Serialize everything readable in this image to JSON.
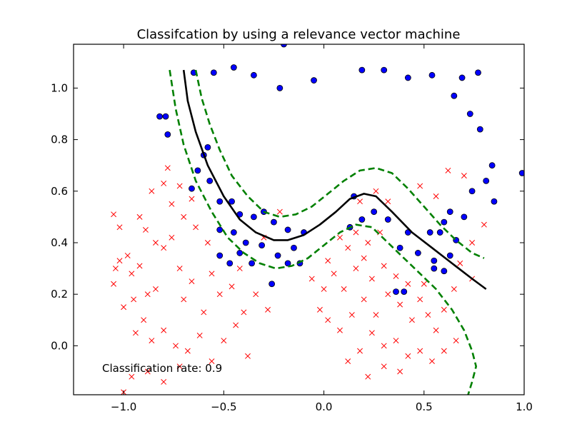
{
  "chart_data": {
    "type": "scatter",
    "title": "Classifcation by using a relevance vector machine",
    "xlabel": "",
    "ylabel": "",
    "xlim": [
      -1.25,
      1.0
    ],
    "ylim": [
      -0.19,
      1.17
    ],
    "x_ticks": [
      -1.0,
      -0.5,
      0.0,
      0.5,
      1.0
    ],
    "x_tick_labels": [
      "−1.0",
      "−0.5",
      "0.0",
      "0.5",
      "1.0"
    ],
    "y_ticks": [
      0.0,
      0.2,
      0.4,
      0.6,
      0.8,
      1.0
    ],
    "y_tick_labels": [
      "0.0",
      "0.2",
      "0.4",
      "0.6",
      "0.8",
      "1.0"
    ],
    "grid": false,
    "annotation": "Classification rate: 0.9",
    "colors": {
      "class_circle": "#0000ff",
      "class_cross": "#ff0000",
      "decision_boundary": "#000000",
      "margin_lines": "#008000"
    },
    "series": [
      {
        "marker": "circle",
        "color": "#0000ff",
        "points": [
          [
            -0.82,
            0.89
          ],
          [
            -0.79,
            0.89
          ],
          [
            -0.78,
            0.82
          ],
          [
            -0.65,
            1.06
          ],
          [
            -0.55,
            1.06
          ],
          [
            -0.45,
            1.08
          ],
          [
            -0.35,
            1.05
          ],
          [
            -0.22,
            1.0
          ],
          [
            -0.2,
            1.17
          ],
          [
            -0.05,
            1.03
          ],
          [
            0.19,
            1.07
          ],
          [
            0.3,
            1.07
          ],
          [
            0.42,
            1.04
          ],
          [
            0.54,
            1.05
          ],
          [
            0.69,
            1.04
          ],
          [
            0.77,
            1.06
          ],
          [
            0.65,
            0.97
          ],
          [
            0.73,
            0.9
          ],
          [
            0.78,
            0.84
          ],
          [
            0.84,
            0.7
          ],
          [
            0.99,
            0.67
          ],
          [
            0.81,
            0.64
          ],
          [
            0.85,
            0.56
          ],
          [
            0.74,
            0.6
          ],
          [
            -0.6,
            0.74
          ],
          [
            -0.58,
            0.77
          ],
          [
            -0.63,
            0.68
          ],
          [
            -0.66,
            0.61
          ],
          [
            -0.57,
            0.64
          ],
          [
            -0.52,
            0.56
          ],
          [
            -0.46,
            0.56
          ],
          [
            -0.42,
            0.51
          ],
          [
            -0.35,
            0.5
          ],
          [
            -0.3,
            0.52
          ],
          [
            -0.25,
            0.48
          ],
          [
            -0.18,
            0.45
          ],
          [
            -0.1,
            0.44
          ],
          [
            -0.52,
            0.45
          ],
          [
            -0.45,
            0.44
          ],
          [
            -0.39,
            0.4
          ],
          [
            -0.31,
            0.39
          ],
          [
            -0.23,
            0.35
          ],
          [
            -0.15,
            0.38
          ],
          [
            -0.52,
            0.35
          ],
          [
            -0.42,
            0.36
          ],
          [
            -0.47,
            0.32
          ],
          [
            -0.36,
            0.32
          ],
          [
            -0.26,
            0.24
          ],
          [
            -0.18,
            0.32
          ],
          [
            -0.12,
            0.32
          ],
          [
            0.13,
            0.46
          ],
          [
            0.19,
            0.49
          ],
          [
            0.15,
            0.58
          ],
          [
            0.25,
            0.52
          ],
          [
            0.32,
            0.49
          ],
          [
            0.42,
            0.44
          ],
          [
            0.53,
            0.44
          ],
          [
            0.58,
            0.44
          ],
          [
            0.66,
            0.41
          ],
          [
            0.38,
            0.38
          ],
          [
            0.47,
            0.36
          ],
          [
            0.55,
            0.33
          ],
          [
            0.63,
            0.35
          ],
          [
            0.6,
            0.29
          ],
          [
            0.55,
            0.3
          ],
          [
            0.4,
            0.21
          ],
          [
            0.36,
            0.21
          ],
          [
            0.7,
            0.5
          ],
          [
            0.63,
            0.52
          ],
          [
            0.6,
            0.48
          ]
        ]
      },
      {
        "marker": "x",
        "color": "#ff0000",
        "points": [
          [
            -1.05,
            0.51
          ],
          [
            -1.02,
            0.46
          ],
          [
            -0.98,
            0.35
          ],
          [
            -1.02,
            0.33
          ],
          [
            -0.96,
            0.28
          ],
          [
            -0.92,
            0.31
          ],
          [
            -0.88,
            0.2
          ],
          [
            -1.0,
            0.15
          ],
          [
            -0.95,
            0.18
          ],
          [
            -0.9,
            0.1
          ],
          [
            -0.84,
            0.22
          ],
          [
            -0.8,
            0.38
          ],
          [
            -0.76,
            0.42
          ],
          [
            -0.72,
            0.3
          ],
          [
            -0.66,
            0.25
          ],
          [
            -0.7,
            0.18
          ],
          [
            -0.6,
            0.13
          ],
          [
            -0.56,
            0.28
          ],
          [
            -0.52,
            0.2
          ],
          [
            -0.46,
            0.23
          ],
          [
            -0.4,
            0.13
          ],
          [
            -0.86,
            0.6
          ],
          [
            -0.8,
            0.63
          ],
          [
            -0.76,
            0.55
          ],
          [
            -0.7,
            0.5
          ],
          [
            -0.64,
            0.46
          ],
          [
            -0.58,
            0.4
          ],
          [
            -0.92,
            0.5
          ],
          [
            -0.89,
            0.45
          ],
          [
            -0.84,
            0.4
          ],
          [
            -0.94,
            0.05
          ],
          [
            -0.86,
            0.02
          ],
          [
            -0.8,
            0.06
          ],
          [
            -0.74,
            0.0
          ],
          [
            -0.68,
            -0.02
          ],
          [
            -0.62,
            0.04
          ],
          [
            -0.56,
            -0.06
          ],
          [
            -0.5,
            0.02
          ],
          [
            -0.44,
            0.08
          ],
          [
            -0.38,
            -0.04
          ],
          [
            -0.96,
            -0.12
          ],
          [
            -0.88,
            -0.1
          ],
          [
            -0.8,
            -0.14
          ],
          [
            -0.72,
            -0.08
          ],
          [
            -1.0,
            -0.18
          ],
          [
            -0.78,
            0.69
          ],
          [
            -0.72,
            0.62
          ],
          [
            -0.66,
            0.57
          ],
          [
            -1.05,
            0.24
          ],
          [
            -1.04,
            0.3
          ],
          [
            0.02,
            0.33
          ],
          [
            0.08,
            0.42
          ],
          [
            0.12,
            0.38
          ],
          [
            0.05,
            0.28
          ],
          [
            0.1,
            0.22
          ],
          [
            0.16,
            0.3
          ],
          [
            0.2,
            0.34
          ],
          [
            0.24,
            0.26
          ],
          [
            0.3,
            0.31
          ],
          [
            0.36,
            0.27
          ],
          [
            0.42,
            0.24
          ],
          [
            0.48,
            0.18
          ],
          [
            0.52,
            0.12
          ],
          [
            0.56,
            0.06
          ],
          [
            0.6,
            0.14
          ],
          [
            0.65,
            0.22
          ],
          [
            0.5,
            0.24
          ],
          [
            0.44,
            0.1
          ],
          [
            0.38,
            0.16
          ],
          [
            0.32,
            0.2
          ],
          [
            0.26,
            0.12
          ],
          [
            0.2,
            0.18
          ],
          [
            0.14,
            0.12
          ],
          [
            0.08,
            0.06
          ],
          [
            0.02,
            0.1
          ],
          [
            -0.02,
            0.14
          ],
          [
            0.0,
            0.22
          ],
          [
            -0.06,
            0.26
          ],
          [
            0.24,
            0.05
          ],
          [
            0.3,
            0.0
          ],
          [
            0.36,
            0.02
          ],
          [
            0.42,
            -0.04
          ],
          [
            0.48,
            -0.02
          ],
          [
            0.54,
            -0.06
          ],
          [
            0.6,
            -0.02
          ],
          [
            0.66,
            0.02
          ],
          [
            0.18,
            -0.02
          ],
          [
            0.12,
            -0.06
          ],
          [
            0.22,
            -0.12
          ],
          [
            0.3,
            -0.08
          ],
          [
            0.38,
            -0.1
          ],
          [
            0.16,
            0.44
          ],
          [
            0.22,
            0.4
          ],
          [
            0.28,
            0.44
          ],
          [
            0.18,
            0.56
          ],
          [
            0.26,
            0.6
          ],
          [
            0.32,
            0.56
          ],
          [
            0.48,
            0.62
          ],
          [
            0.56,
            0.58
          ],
          [
            0.62,
            0.68
          ],
          [
            0.7,
            0.66
          ],
          [
            0.8,
            0.47
          ],
          [
            0.74,
            0.4
          ],
          [
            0.68,
            0.32
          ],
          [
            0.74,
            0.26
          ],
          [
            -0.22,
            0.52
          ],
          [
            -0.3,
            0.42
          ],
          [
            -0.42,
            0.3
          ],
          [
            -0.34,
            0.2
          ],
          [
            -0.28,
            0.14
          ]
        ]
      }
    ],
    "decision_boundary": {
      "style": "solid",
      "color": "#000000",
      "points": [
        [
          -0.7,
          1.07
        ],
        [
          -0.68,
          0.95
        ],
        [
          -0.64,
          0.83
        ],
        [
          -0.58,
          0.7
        ],
        [
          -0.5,
          0.58
        ],
        [
          -0.42,
          0.49
        ],
        [
          -0.34,
          0.44
        ],
        [
          -0.25,
          0.41
        ],
        [
          -0.18,
          0.41
        ],
        [
          -0.1,
          0.43
        ],
        [
          -0.02,
          0.47
        ],
        [
          0.06,
          0.52
        ],
        [
          0.13,
          0.57
        ],
        [
          0.2,
          0.59
        ],
        [
          0.26,
          0.58
        ],
        [
          0.34,
          0.52
        ],
        [
          0.44,
          0.44
        ],
        [
          0.54,
          0.38
        ],
        [
          0.64,
          0.32
        ],
        [
          0.74,
          0.26
        ],
        [
          0.81,
          0.22
        ]
      ]
    },
    "margin_lines": [
      {
        "style": "dashed",
        "color": "#008000",
        "points": [
          [
            -0.77,
            1.07
          ],
          [
            -0.74,
            0.92
          ],
          [
            -0.7,
            0.78
          ],
          [
            -0.64,
            0.64
          ],
          [
            -0.56,
            0.52
          ],
          [
            -0.48,
            0.42
          ],
          [
            -0.4,
            0.36
          ],
          [
            -0.32,
            0.32
          ],
          [
            -0.24,
            0.3
          ],
          [
            -0.16,
            0.31
          ],
          [
            -0.08,
            0.34
          ],
          [
            0.0,
            0.39
          ],
          [
            0.08,
            0.44
          ],
          [
            0.16,
            0.47
          ],
          [
            0.24,
            0.46
          ],
          [
            0.32,
            0.4
          ],
          [
            0.4,
            0.34
          ],
          [
            0.48,
            0.28
          ],
          [
            0.56,
            0.22
          ],
          [
            0.64,
            0.14
          ],
          [
            0.7,
            0.06
          ],
          [
            0.74,
            -0.02
          ],
          [
            0.76,
            -0.08
          ],
          [
            0.74,
            -0.14
          ],
          [
            0.72,
            -0.19
          ]
        ]
      },
      {
        "style": "dashed",
        "color": "#008000",
        "points": [
          [
            -0.64,
            1.07
          ],
          [
            -0.61,
            0.96
          ],
          [
            -0.57,
            0.86
          ],
          [
            -0.52,
            0.76
          ],
          [
            -0.46,
            0.66
          ],
          [
            -0.38,
            0.58
          ],
          [
            -0.3,
            0.52
          ],
          [
            -0.22,
            0.5
          ],
          [
            -0.14,
            0.51
          ],
          [
            -0.06,
            0.54
          ],
          [
            0.02,
            0.59
          ],
          [
            0.1,
            0.64
          ],
          [
            0.18,
            0.68
          ],
          [
            0.26,
            0.69
          ],
          [
            0.34,
            0.67
          ],
          [
            0.42,
            0.61
          ],
          [
            0.5,
            0.54
          ],
          [
            0.58,
            0.47
          ],
          [
            0.66,
            0.41
          ],
          [
            0.74,
            0.36
          ],
          [
            0.8,
            0.34
          ]
        ]
      }
    ]
  }
}
